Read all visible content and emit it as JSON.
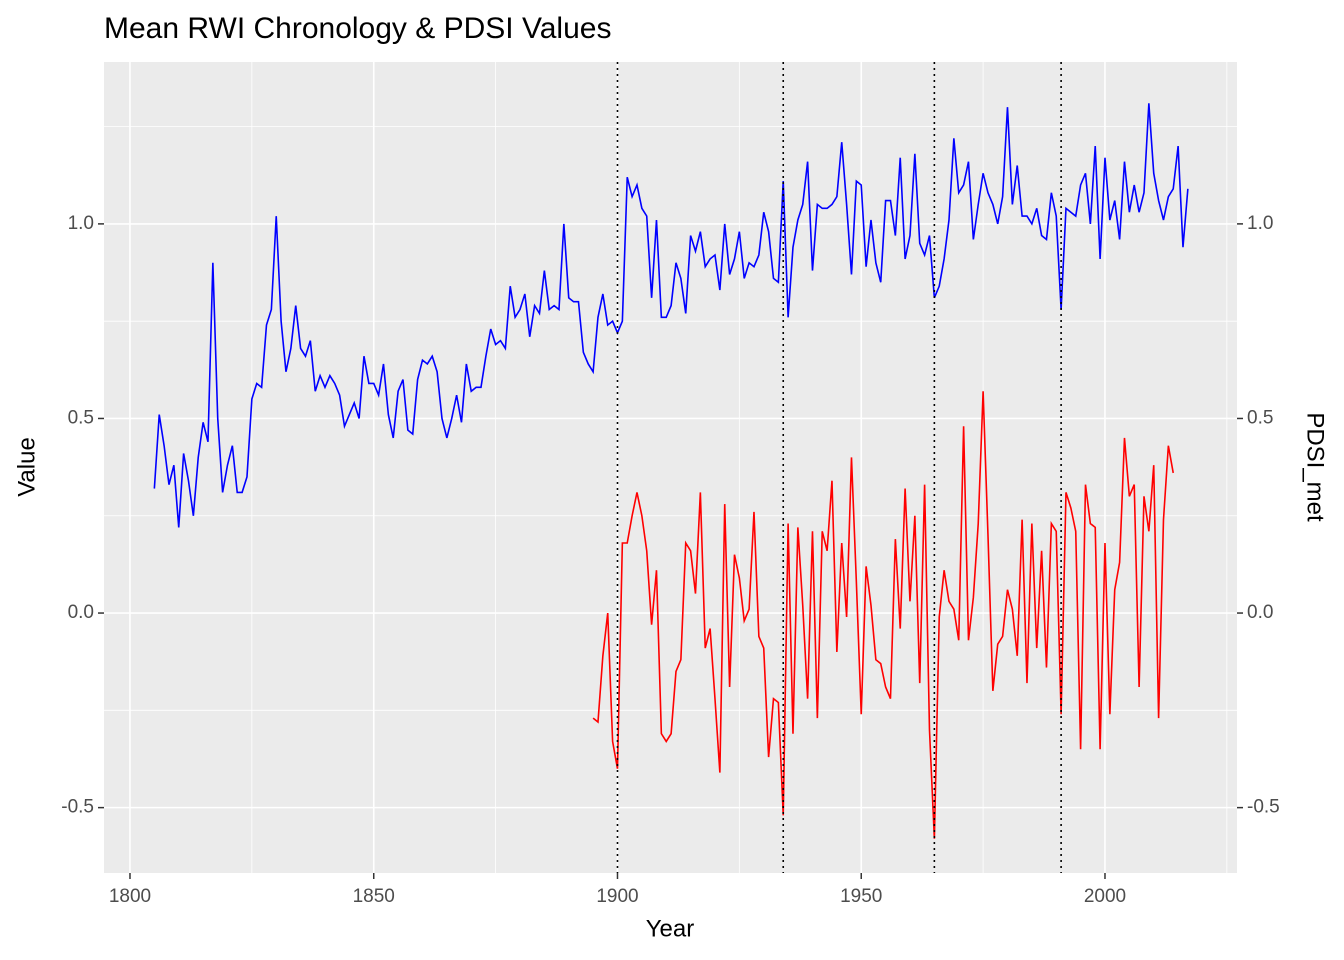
{
  "chart_data": {
    "type": "line",
    "title": "Mean RWI Chronology & PDSI Values",
    "xlabel": "Year",
    "ylabel": "Value",
    "y2label": "PDSI_met",
    "xlim": [
      1794.67,
      2027.08
    ],
    "xticks": [
      1800,
      1850,
      1900,
      1950,
      2000
    ],
    "xminor": [
      1825,
      1875,
      1925,
      1975,
      2025
    ],
    "ylim": [
      -0.668,
      1.416
    ],
    "yticks": [
      {
        "value": -0.5,
        "label": "-0.5"
      },
      {
        "value": 0,
        "label": "0.0"
      },
      0.5,
      {
        "value": 1,
        "label": "1.0"
      }
    ],
    "yminor": [
      -0.25,
      0.25,
      0.75,
      1.25
    ],
    "y2lim": [
      -0.668,
      1.416
    ],
    "y2ticks": [
      {
        "value": -0.5,
        "label": "-0.5"
      },
      {
        "value": 0,
        "label": "0.0"
      },
      0.5,
      {
        "value": 1,
        "label": "1.0"
      }
    ],
    "grid": true,
    "vlines": [
      1900,
      1934,
      1965,
      1991
    ],
    "series": [
      {
        "color": "#0000ff",
        "x": [
          1805,
          1806,
          1807,
          1808,
          1809,
          1810,
          1811,
          1812,
          1813,
          1814,
          1815,
          1816,
          1817,
          1818,
          1819,
          1820,
          1821,
          1822,
          1823,
          1824,
          1825,
          1826,
          1827,
          1828,
          1829,
          1830,
          1831,
          1832,
          1833,
          1834,
          1835,
          1836,
          1837,
          1838,
          1839,
          1840,
          1841,
          1842,
          1843,
          1844,
          1845,
          1846,
          1847,
          1848,
          1849,
          1850,
          1851,
          1852,
          1853,
          1854,
          1855,
          1856,
          1857,
          1858,
          1859,
          1860,
          1861,
          1862,
          1863,
          1864,
          1865,
          1866,
          1867,
          1868,
          1869,
          1870,
          1871,
          1872,
          1873,
          1874,
          1875,
          1876,
          1877,
          1878,
          1879,
          1880,
          1881,
          1882,
          1883,
          1884,
          1885,
          1886,
          1887,
          1888,
          1889,
          1890,
          1891,
          1892,
          1893,
          1894,
          1895,
          1896,
          1897,
          1898,
          1899,
          1900,
          1901,
          1902,
          1903,
          1904,
          1905,
          1906,
          1907,
          1908,
          1909,
          1910,
          1911,
          1912,
          1913,
          1914,
          1915,
          1916,
          1917,
          1918,
          1919,
          1920,
          1921,
          1922,
          1923,
          1924,
          1925,
          1926,
          1927,
          1928,
          1929,
          1930,
          1931,
          1932,
          1933,
          1934,
          1935,
          1936,
          1937,
          1938,
          1939,
          1940,
          1941,
          1942,
          1943,
          1944,
          1945,
          1946,
          1947,
          1948,
          1949,
          1950,
          1951,
          1952,
          1953,
          1954,
          1955,
          1956,
          1957,
          1958,
          1959,
          1960,
          1961,
          1962,
          1963,
          1964,
          1965,
          1966,
          1967,
          1968,
          1969,
          1970,
          1971,
          1972,
          1973,
          1974,
          1975,
          1976,
          1977,
          1978,
          1979,
          1980,
          1981,
          1982,
          1983,
          1984,
          1985,
          1986,
          1987,
          1988,
          1989,
          1990,
          1991,
          1992,
          1993,
          1994,
          1995,
          1996,
          1997,
          1998,
          1999,
          2000,
          2001,
          2002,
          2003,
          2004,
          2005,
          2006,
          2007,
          2008,
          2009,
          2010,
          2011,
          2012,
          2013,
          2014,
          2015,
          2016,
          2017
        ],
        "values": [
          0.32,
          0.51,
          0.43,
          0.33,
          0.38,
          0.22,
          0.41,
          0.34,
          0.25,
          0.4,
          0.49,
          0.44,
          0.9,
          0.5,
          0.31,
          0.38,
          0.43,
          0.31,
          0.31,
          0.35,
          0.55,
          0.59,
          0.58,
          0.74,
          0.78,
          1.02,
          0.75,
          0.62,
          0.68,
          0.79,
          0.68,
          0.66,
          0.7,
          0.57,
          0.61,
          0.58,
          0.61,
          0.59,
          0.56,
          0.48,
          0.51,
          0.54,
          0.5,
          0.66,
          0.59,
          0.59,
          0.56,
          0.64,
          0.51,
          0.45,
          0.57,
          0.6,
          0.47,
          0.46,
          0.6,
          0.65,
          0.64,
          0.66,
          0.62,
          0.5,
          0.45,
          0.5,
          0.56,
          0.49,
          0.64,
          0.57,
          0.58,
          0.58,
          0.66,
          0.73,
          0.69,
          0.7,
          0.68,
          0.84,
          0.76,
          0.78,
          0.82,
          0.71,
          0.79,
          0.77,
          0.88,
          0.78,
          0.79,
          0.78,
          1.0,
          0.81,
          0.8,
          0.8,
          0.67,
          0.64,
          0.62,
          0.76,
          0.82,
          0.74,
          0.75,
          0.72,
          0.75,
          1.12,
          1.07,
          1.1,
          1.04,
          1.02,
          0.81,
          1.01,
          0.76,
          0.76,
          0.79,
          0.9,
          0.86,
          0.77,
          0.97,
          0.93,
          0.98,
          0.89,
          0.91,
          0.92,
          0.83,
          1.0,
          0.87,
          0.91,
          0.98,
          0.86,
          0.9,
          0.89,
          0.92,
          1.03,
          0.98,
          0.86,
          0.85,
          1.11,
          0.76,
          0.94,
          1.01,
          1.05,
          1.16,
          0.88,
          1.05,
          1.04,
          1.04,
          1.05,
          1.07,
          1.21,
          1.05,
          0.87,
          1.11,
          1.1,
          0.89,
          1.01,
          0.9,
          0.85,
          1.06,
          1.06,
          0.97,
          1.17,
          0.91,
          0.97,
          1.18,
          0.95,
          0.92,
          0.97,
          0.81,
          0.84,
          0.91,
          1.01,
          1.22,
          1.08,
          1.1,
          1.16,
          0.96,
          1.05,
          1.13,
          1.08,
          1.05,
          1.0,
          1.07,
          1.3,
          1.05,
          1.15,
          1.02,
          1.02,
          1.0,
          1.04,
          0.97,
          0.96,
          1.08,
          1.02,
          0.78,
          1.04,
          1.03,
          1.02,
          1.1,
          1.13,
          1.0,
          1.2,
          0.91,
          1.17,
          1.01,
          1.06,
          0.96,
          1.16,
          1.03,
          1.1,
          1.03,
          1.08,
          1.31,
          1.13,
          1.06,
          1.01,
          1.07,
          1.09,
          1.2,
          0.94,
          1.09
        ]
      },
      {
        "color": "#ff0000",
        "axis": "y2",
        "x": [
          1895,
          1896,
          1897,
          1898,
          1899,
          1900,
          1901,
          1902,
          1903,
          1904,
          1905,
          1906,
          1907,
          1908,
          1909,
          1910,
          1911,
          1912,
          1913,
          1914,
          1915,
          1916,
          1917,
          1918,
          1919,
          1920,
          1921,
          1922,
          1923,
          1924,
          1925,
          1926,
          1927,
          1928,
          1929,
          1930,
          1931,
          1932,
          1933,
          1934,
          1935,
          1936,
          1937,
          1938,
          1939,
          1940,
          1941,
          1942,
          1943,
          1944,
          1945,
          1946,
          1947,
          1948,
          1949,
          1950,
          1951,
          1952,
          1953,
          1954,
          1955,
          1956,
          1957,
          1958,
          1959,
          1960,
          1961,
          1962,
          1963,
          1964,
          1965,
          1966,
          1967,
          1968,
          1969,
          1970,
          1971,
          1972,
          1973,
          1974,
          1975,
          1976,
          1977,
          1978,
          1979,
          1980,
          1981,
          1982,
          1983,
          1984,
          1985,
          1986,
          1987,
          1988,
          1989,
          1990,
          1991,
          1992,
          1993,
          1994,
          1995,
          1996,
          1997,
          1998,
          1999,
          2000,
          2001,
          2002,
          2003,
          2004,
          2005,
          2006,
          2007,
          2008,
          2009,
          2010,
          2011,
          2012,
          2013,
          2014
        ],
        "values": [
          -0.27,
          -0.28,
          -0.11,
          0.0,
          -0.33,
          -0.4,
          0.18,
          0.18,
          0.25,
          0.31,
          0.25,
          0.16,
          -0.03,
          0.11,
          -0.31,
          -0.33,
          -0.31,
          -0.15,
          -0.12,
          0.18,
          0.16,
          0.05,
          0.31,
          -0.09,
          -0.04,
          -0.22,
          -0.41,
          0.28,
          -0.19,
          0.15,
          0.09,
          -0.02,
          0.01,
          0.26,
          -0.06,
          -0.09,
          -0.37,
          -0.22,
          -0.23,
          -0.52,
          0.23,
          -0.31,
          0.22,
          0.02,
          -0.22,
          0.21,
          -0.27,
          0.21,
          0.16,
          0.34,
          -0.1,
          0.18,
          -0.01,
          0.4,
          0.08,
          -0.26,
          0.12,
          0.02,
          -0.12,
          -0.13,
          -0.19,
          -0.22,
          0.19,
          -0.04,
          0.32,
          0.03,
          0.25,
          -0.18,
          0.33,
          -0.3,
          -0.58,
          -0.01,
          0.11,
          0.03,
          0.01,
          -0.07,
          0.48,
          -0.07,
          0.04,
          0.23,
          0.57,
          0.2,
          -0.2,
          -0.08,
          -0.06,
          0.06,
          0.01,
          -0.11,
          0.24,
          -0.18,
          0.23,
          -0.09,
          0.16,
          -0.14,
          0.23,
          0.21,
          -0.26,
          0.31,
          0.27,
          0.21,
          -0.35,
          0.33,
          0.23,
          0.22,
          -0.35,
          0.18,
          -0.26,
          0.06,
          0.13,
          0.45,
          0.3,
          0.33,
          -0.19,
          0.3,
          0.21,
          0.38,
          -0.27,
          0.24,
          0.43,
          0.36
        ]
      }
    ]
  }
}
